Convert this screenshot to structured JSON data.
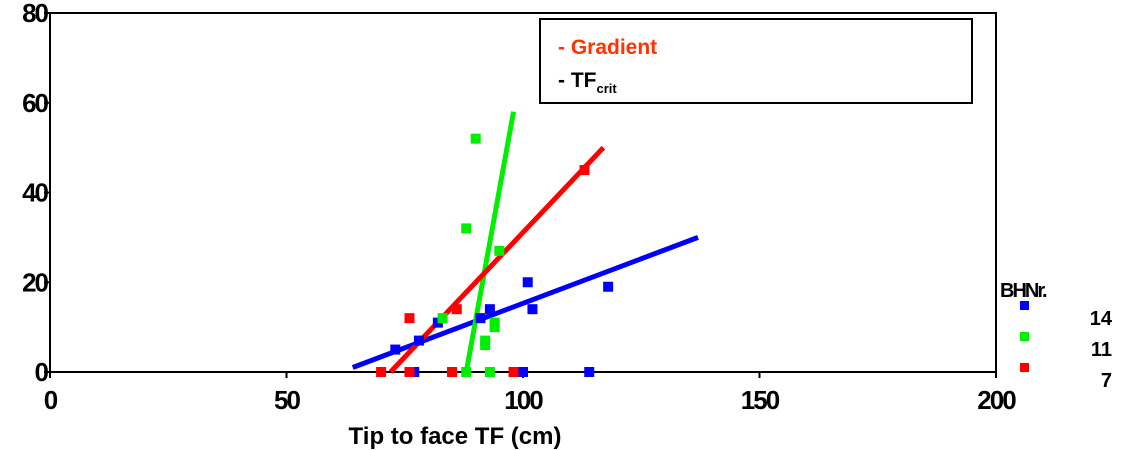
{
  "chart_data": {
    "type": "scatter",
    "title": "",
    "xlabel": "Tip to face TF (cm)",
    "ylabel": "",
    "xlim": [
      0,
      200
    ],
    "ylim": [
      0,
      80
    ],
    "xticks": [
      "0",
      "50",
      "100",
      "150",
      "200"
    ],
    "yticks": [
      "0",
      "20",
      "40",
      "60",
      "80"
    ],
    "xtick_values": [
      0,
      50,
      100,
      150,
      200
    ],
    "ytick_values": [
      0,
      20,
      40,
      60,
      80
    ],
    "grid": false,
    "legend": {
      "title": "BHNr.",
      "placement": "right",
      "entries": [
        {
          "label": "14",
          "color": "#0000ff"
        },
        {
          "label": "11",
          "color": "#00ee00"
        },
        {
          "label": "7",
          "color": "#ff0000"
        }
      ]
    },
    "annotation_box": {
      "line1": "- Gradient",
      "line1_color": "#ff3300",
      "line2_prefix": "- TF",
      "line2_sub": "crit",
      "line2_color": "#000000"
    },
    "series": [
      {
        "name": "14",
        "color": "#0000ff",
        "points": [
          {
            "x": 73,
            "y": 5
          },
          {
            "x": 77,
            "y": 0
          },
          {
            "x": 78,
            "y": 7
          },
          {
            "x": 82,
            "y": 11
          },
          {
            "x": 91,
            "y": 12
          },
          {
            "x": 93,
            "y": 14
          },
          {
            "x": 100,
            "y": 0
          },
          {
            "x": 101,
            "y": 20
          },
          {
            "x": 102,
            "y": 14
          },
          {
            "x": 114,
            "y": 0
          },
          {
            "x": 118,
            "y": 19
          }
        ],
        "fit": {
          "x1": 64,
          "y1": 1,
          "x2": 137,
          "y2": 30
        }
      },
      {
        "name": "11",
        "color": "#00ee00",
        "points": [
          {
            "x": 83,
            "y": 12
          },
          {
            "x": 88,
            "y": 0
          },
          {
            "x": 88,
            "y": 32
          },
          {
            "x": 90,
            "y": 52
          },
          {
            "x": 92,
            "y": 6
          },
          {
            "x": 92,
            "y": 7
          },
          {
            "x": 93,
            "y": 0
          },
          {
            "x": 94,
            "y": 10
          },
          {
            "x": 94,
            "y": 11
          },
          {
            "x": 95,
            "y": 27
          }
        ],
        "fit": {
          "x1": 88,
          "y1": 0,
          "x2": 98,
          "y2": 58
        }
      },
      {
        "name": "7",
        "color": "#ff0000",
        "points": [
          {
            "x": 70,
            "y": 0
          },
          {
            "x": 76,
            "y": 0
          },
          {
            "x": 76,
            "y": 12
          },
          {
            "x": 85,
            "y": 0
          },
          {
            "x": 86,
            "y": 14
          },
          {
            "x": 98,
            "y": 0
          },
          {
            "x": 113,
            "y": 45
          }
        ],
        "fit": {
          "x1": 72,
          "y1": 0,
          "x2": 117,
          "y2": 50
        }
      }
    ]
  }
}
